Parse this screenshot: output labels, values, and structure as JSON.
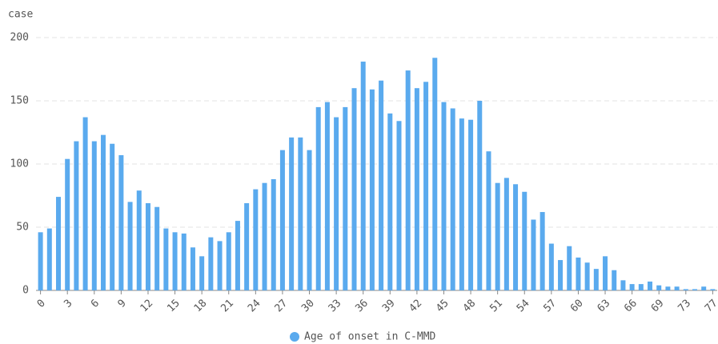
{
  "chart_data": {
    "type": "bar",
    "y_label": "case",
    "color": "#5aaaee",
    "grid": true,
    "categories": [
      "0",
      null,
      null,
      "3",
      null,
      null,
      "6",
      null,
      null,
      "9",
      null,
      null,
      "12",
      null,
      null,
      "15",
      null,
      null,
      "18",
      null,
      null,
      "21",
      null,
      null,
      "24",
      null,
      null,
      "27",
      null,
      null,
      "30",
      null,
      null,
      "33",
      null,
      null,
      "36",
      null,
      null,
      "39",
      null,
      null,
      "42",
      null,
      null,
      "45",
      null,
      null,
      "48",
      null,
      null,
      "51",
      null,
      null,
      "54",
      null,
      null,
      "57",
      null,
      null,
      "60",
      null,
      null,
      "63",
      null,
      null,
      "66",
      null,
      null,
      "69",
      null,
      null,
      "73",
      null,
      null,
      "77"
    ],
    "series": [
      {
        "name": "Age of onset in C-MMD",
        "color": "#5aaaee",
        "values": [
          46,
          49,
          74,
          104,
          118,
          137,
          118,
          123,
          116,
          107,
          70,
          79,
          69,
          66,
          49,
          46,
          45,
          34,
          27,
          42,
          39,
          46,
          55,
          69,
          80,
          85,
          88,
          111,
          121,
          121,
          111,
          145,
          149,
          137,
          145,
          160,
          181,
          159,
          166,
          140,
          134,
          174,
          160,
          165,
          184,
          149,
          144,
          136,
          135,
          150,
          110,
          85,
          89,
          84,
          78,
          56,
          62,
          37,
          24,
          35,
          26,
          22,
          17,
          27,
          16,
          8,
          5,
          5,
          7,
          4,
          3,
          3,
          1,
          1,
          3,
          1
        ]
      }
    ],
    "ylim": [
      0,
      200
    ],
    "yticks": [
      0,
      50,
      100,
      150,
      200
    ]
  }
}
